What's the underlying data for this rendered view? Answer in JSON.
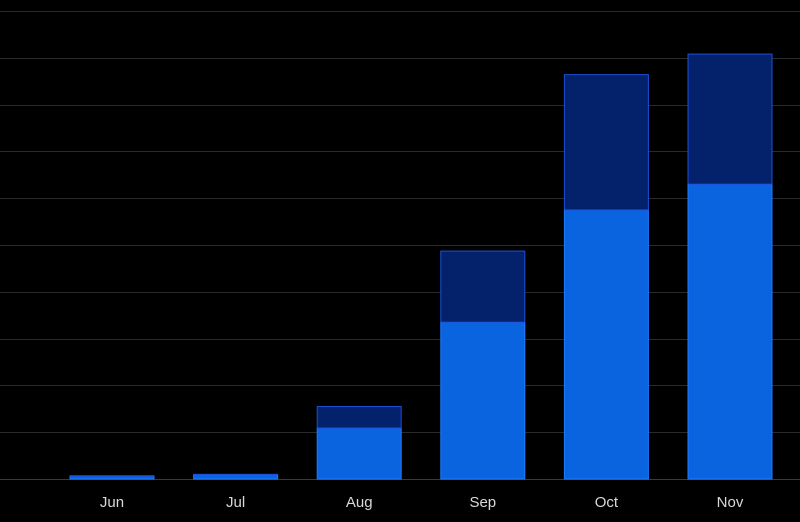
{
  "chart_data": {
    "type": "bar",
    "stacked": true,
    "categories": [
      "Jun",
      "Jul",
      "Aug",
      "Sep",
      "Oct",
      "Nov"
    ],
    "series": [
      {
        "values": [
          0.6,
          0.9,
          10.9,
          33.5,
          57.5,
          63.0
        ],
        "color": "#0a64e0"
      },
      {
        "values": [
          0.1,
          0.1,
          4.6,
          15.2,
          28.9,
          27.8
        ],
        "color": "#04216b"
      }
    ],
    "ylim": [
      0,
      100
    ],
    "grid": true,
    "title": "",
    "xlabel": "",
    "ylabel": ""
  }
}
